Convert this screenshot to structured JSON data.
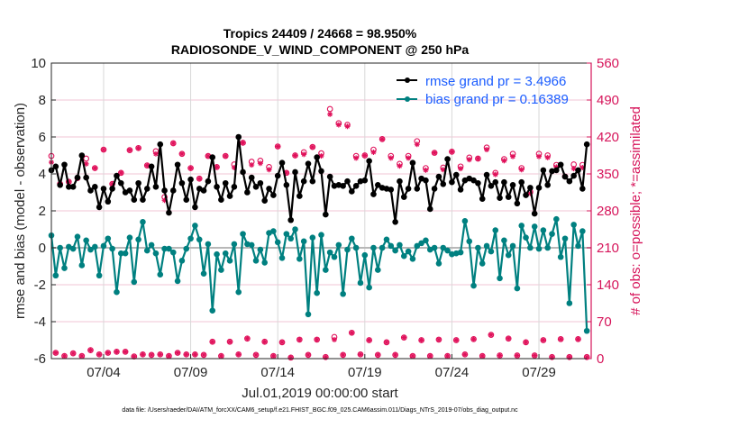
{
  "chart_data": {
    "type": "line",
    "title": "Tropics 24409 / 24668 = 98.950%",
    "subtitle": "RADIOSONDE_V_WIND_COMPONENT @ 250 hPa",
    "xlabel": "Jul.01,2019 00:00:00 start",
    "ylabel": "rmse and bias (model - observation)",
    "y2label": "# of obs: o=possible; *=assimilated",
    "footer": "data file: /Users/raeder/DAI/ATM_forcXX/CAM6_setup/f.e21.FHIST_BGC.f09_025.CAM6assim.011/Diags_NTrS_2019-07/obs_diag_output.nc",
    "xlim": [
      "07/01 00:00",
      "08/01 00:00"
    ],
    "ylim": [
      -6,
      10
    ],
    "y2lim": [
      0,
      560
    ],
    "x_ticks": [
      "07/04",
      "07/09",
      "07/14",
      "07/19",
      "07/24",
      "07/29"
    ],
    "y_ticks": [
      "-6",
      "-4",
      "-2",
      "0",
      "2",
      "4",
      "6",
      "8",
      "10"
    ],
    "y2_ticks": [
      "0",
      "70",
      "140",
      "210",
      "280",
      "350",
      "420",
      "490",
      "560"
    ],
    "grid": true,
    "legend": {
      "placement": "top-right",
      "entries": [
        "rmse grand pr = 3.4966",
        "bias grand pr = 0.16389"
      ]
    },
    "colors": {
      "rmse": "#000000",
      "bias": "#008080",
      "obs": "#e0105a",
      "legend_text": "#1a5cff",
      "grid_h": "#f2c6d6",
      "grid_v": "#d8d8d8",
      "zero_line": "#b8b8b8"
    },
    "x": [
      "07/01 00:00",
      "07/01 06:00",
      "07/01 12:00",
      "07/01 18:00",
      "07/02 00:00",
      "07/02 06:00",
      "07/02 12:00",
      "07/02 18:00",
      "07/03 00:00",
      "07/03 06:00",
      "07/03 12:00",
      "07/03 18:00",
      "07/04 00:00",
      "07/04 06:00",
      "07/04 12:00",
      "07/04 18:00",
      "07/05 00:00",
      "07/05 06:00",
      "07/05 12:00",
      "07/05 18:00",
      "07/06 00:00",
      "07/06 06:00",
      "07/06 12:00",
      "07/06 18:00",
      "07/07 00:00",
      "07/07 06:00",
      "07/07 12:00",
      "07/07 18:00",
      "07/08 00:00",
      "07/08 06:00",
      "07/08 12:00",
      "07/08 18:00",
      "07/09 00:00",
      "07/09 06:00",
      "07/09 12:00",
      "07/09 18:00",
      "07/10 00:00",
      "07/10 06:00",
      "07/10 12:00",
      "07/10 18:00",
      "07/11 00:00",
      "07/11 06:00",
      "07/11 12:00",
      "07/11 18:00",
      "07/12 00:00",
      "07/12 06:00",
      "07/12 12:00",
      "07/12 18:00",
      "07/13 00:00",
      "07/13 06:00",
      "07/13 12:00",
      "07/13 18:00",
      "07/14 00:00",
      "07/14 06:00",
      "07/14 12:00",
      "07/14 18:00",
      "07/15 00:00",
      "07/15 06:00",
      "07/15 12:00",
      "07/15 18:00",
      "07/16 00:00",
      "07/16 06:00",
      "07/16 12:00",
      "07/16 18:00",
      "07/17 00:00",
      "07/17 06:00",
      "07/17 12:00",
      "07/17 18:00",
      "07/18 00:00",
      "07/18 06:00",
      "07/18 12:00",
      "07/18 18:00",
      "07/19 00:00",
      "07/19 06:00",
      "07/19 12:00",
      "07/19 18:00",
      "07/20 00:00",
      "07/20 06:00",
      "07/20 12:00",
      "07/20 18:00",
      "07/21 00:00",
      "07/21 06:00",
      "07/21 12:00",
      "07/21 18:00",
      "07/22 00:00",
      "07/22 06:00",
      "07/22 12:00",
      "07/22 18:00",
      "07/23 00:00",
      "07/23 06:00",
      "07/23 12:00",
      "07/23 18:00",
      "07/24 00:00",
      "07/24 06:00",
      "07/24 12:00",
      "07/24 18:00",
      "07/25 00:00",
      "07/25 06:00",
      "07/25 12:00",
      "07/25 18:00",
      "07/26 00:00",
      "07/26 06:00",
      "07/26 12:00",
      "07/26 18:00",
      "07/27 00:00",
      "07/27 06:00",
      "07/27 12:00",
      "07/27 18:00",
      "07/28 00:00",
      "07/28 06:00",
      "07/28 12:00",
      "07/28 18:00",
      "07/29 00:00",
      "07/29 06:00",
      "07/29 12:00",
      "07/29 18:00",
      "07/30 00:00",
      "07/30 06:00",
      "07/30 12:00",
      "07/30 18:00",
      "07/31 00:00",
      "07/31 06:00",
      "07/31 12:00",
      "07/31 18:00"
    ],
    "series": [
      {
        "name": "rmse grand pr = 3.4966",
        "axis": "left",
        "values": [
          4.2,
          4.4,
          3.4,
          4.5,
          3.3,
          3.3,
          3.8,
          5.0,
          3.8,
          3.1,
          3.3,
          2.2,
          3.2,
          2.5,
          3.2,
          3.9,
          3.5,
          3.0,
          3.1,
          2.6,
          3.5,
          2.6,
          3.2,
          4.4,
          3.3,
          5.6,
          3.1,
          1.9,
          3.1,
          4.5,
          3.5,
          2.6,
          3.7,
          2.2,
          3.2,
          3.1,
          3.6,
          4.9,
          3.3,
          2.6,
          3.5,
          2.8,
          3.3,
          6.0,
          4.1,
          3.0,
          3.8,
          3.3,
          3.5,
          2.55,
          3.2,
          2.85,
          3.9,
          4.6,
          3.4,
          1.5,
          4.1,
          2.8,
          3.6,
          4.55,
          3.6,
          4.9,
          4.15,
          1.8,
          3.85,
          3.35,
          3.4,
          3.35,
          3.6,
          3.05,
          3.35,
          3.6,
          3.65,
          4.7,
          2.9,
          3.4,
          3.25,
          3.2,
          3.15,
          1.4,
          3.6,
          2.75,
          3.2,
          4.6,
          3.2,
          3.75,
          3.65,
          2.1,
          3.2,
          3.85,
          3.45,
          4.8,
          3.55,
          3.95,
          3.15,
          3.65,
          3.75,
          3.65,
          3.5,
          2.65,
          3.95,
          3.35,
          3.55,
          2.7,
          3.55,
          2.75,
          3.4,
          2.4,
          3.55,
          2.85,
          3.25,
          1.85,
          3.25,
          4.2,
          3.4,
          4.15,
          4.2,
          4.5,
          3.85,
          3.6,
          3.9,
          4.2,
          3.2,
          5.6
        ]
      },
      {
        "name": "bias grand pr = 0.16389",
        "axis": "left",
        "values": [
          0.67,
          -1.5,
          0,
          -1.1,
          0.05,
          -0.05,
          0.6,
          -0.95,
          0.4,
          -0.1,
          0.05,
          -1.5,
          0.1,
          0.5,
          -0.05,
          -2.4,
          -0.3,
          -0.3,
          0.55,
          -1.85,
          0.45,
          1.4,
          -0.15,
          0.15,
          -0.3,
          -1.45,
          -0.05,
          -0.05,
          -0.25,
          -1.8,
          -0.7,
          -0.05,
          0.5,
          1.2,
          0.45,
          -1.4,
          0.2,
          -3.4,
          -0.35,
          -1.2,
          -0.3,
          -0.7,
          0.2,
          -2.4,
          0.75,
          0.2,
          0.15,
          -0.7,
          -0.1,
          -0.8,
          0.8,
          0.9,
          0.3,
          -0.55,
          0.75,
          0.5,
          1.0,
          -0.6,
          0.35,
          -3.6,
          0.55,
          -2.45,
          0.7,
          -1.2,
          -0.25,
          -0.5,
          0.15,
          -2.5,
          -0.1,
          0.5,
          0,
          -1.9,
          -0.4,
          -2.15,
          0,
          -1.2,
          0,
          0.45,
          0.1,
          -0.15,
          0.15,
          -0.45,
          -0.2,
          -0.6,
          0.1,
          0.25,
          0.4,
          -0.1,
          0,
          -0.85,
          0,
          -0.15,
          -0.35,
          -0.3,
          -0.25,
          1.45,
          0.35,
          -2.05,
          0,
          -0.85,
          0.1,
          -0.2,
          0.95,
          -1.65,
          0.4,
          -0.4,
          0.1,
          -2.2,
          1.2,
          0.55,
          0,
          1.15,
          -0.05,
          0.95,
          0,
          0.75,
          1.55,
          -0.5,
          0.5,
          -3.0,
          1.25,
          0.1,
          0.9,
          -4.5
        ]
      },
      {
        "name": "possible",
        "axis": "right",
        "values": [
          384,
          11,
          331,
          5,
          335,
          10,
          342,
          5,
          379,
          16,
          361,
          8,
          396,
          11,
          331,
          13,
          352,
          13,
          395,
          4,
          399,
          8,
          366,
          7,
          393,
          8,
          306,
          5,
          408,
          11,
          388,
          8,
          361,
          8,
          341,
          7,
          384,
          32,
          363,
          5,
          384,
          32,
          368,
          8,
          409,
          38,
          373,
          7,
          375,
          32,
          363,
          5,
          402,
          31,
          352,
          2,
          385,
          36,
          391,
          7,
          401,
          36,
          389,
          3,
          473,
          41,
          446,
          7,
          443,
          49,
          384,
          8,
          385,
          35,
          396,
          7,
          416,
          31,
          384,
          7,
          369,
          40,
          384,
          5,
          412,
          35,
          361,
          5,
          390,
          36,
          362,
          5,
          392,
          35,
          364,
          8,
          381,
          37,
          379,
          5,
          400,
          45,
          352,
          6,
          378,
          38,
          388,
          6,
          361,
          31,
          316,
          6,
          388,
          35,
          385,
          3,
          367,
          37,
          345,
          3,
          368,
          37,
          367,
          3
        ]
      },
      {
        "name": "assimilated",
        "axis": "right",
        "values": [
          372,
          11,
          331,
          5,
          335,
          10,
          342,
          5,
          369,
          16,
          361,
          8,
          396,
          11,
          331,
          13,
          352,
          13,
          395,
          4,
          399,
          8,
          366,
          7,
          388,
          8,
          300,
          5,
          408,
          11,
          388,
          8,
          361,
          8,
          341,
          7,
          384,
          32,
          363,
          5,
          384,
          32,
          362,
          8,
          409,
          38,
          367,
          7,
          370,
          32,
          358,
          5,
          402,
          31,
          352,
          2,
          385,
          36,
          387,
          7,
          401,
          36,
          384,
          3,
          463,
          36,
          443,
          7,
          440,
          49,
          380,
          8,
          385,
          35,
          391,
          7,
          416,
          31,
          380,
          7,
          365,
          40,
          380,
          5,
          406,
          35,
          357,
          5,
          390,
          36,
          358,
          5,
          392,
          35,
          360,
          8,
          377,
          37,
          379,
          5,
          396,
          45,
          349,
          6,
          375,
          38,
          383,
          6,
          358,
          31,
          313,
          6,
          383,
          35,
          381,
          3,
          363,
          37,
          345,
          3,
          360,
          37,
          362,
          3
        ]
      }
    ]
  }
}
